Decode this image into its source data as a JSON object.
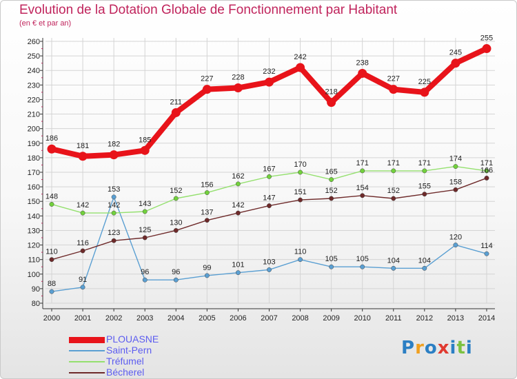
{
  "header": {
    "title": "Evolution de la Dotation Globale de Fonctionnement par Habitant",
    "subtitle": "(en € et par an)"
  },
  "colors": {
    "title": "#c0245c",
    "legend_text": "#5c5cf0",
    "grid": "#d4d4d4"
  },
  "chart_data": {
    "type": "line",
    "title": "Evolution de la Dotation Globale de Fonctionnement par Habitant",
    "subtitle": "(en € et par an)",
    "xlabel": "",
    "ylabel": "",
    "ylim": [
      80,
      260
    ],
    "yticks": [
      80,
      90,
      100,
      110,
      120,
      130,
      140,
      150,
      160,
      170,
      180,
      190,
      200,
      210,
      220,
      230,
      240,
      250,
      260
    ],
    "categories": [
      "2000",
      "2001",
      "2002",
      "2003",
      "2004",
      "2005",
      "2006",
      "2007",
      "2008",
      "2009",
      "2010",
      "2011",
      "2012",
      "2013",
      "2014"
    ],
    "legend_position": "bottom-left",
    "series": [
      {
        "name": "PLOUASNE",
        "color": "#e8131a",
        "marker": "#e8131a",
        "values": [
          186,
          181,
          182,
          185,
          211,
          227,
          228,
          232,
          242,
          218,
          238,
          227,
          225,
          245,
          255
        ]
      },
      {
        "name": "Saint-Pern",
        "color": "#5a9fd2",
        "marker": "#5a9fd2",
        "values": [
          88,
          91,
          153,
          96,
          96,
          99,
          101,
          103,
          110,
          105,
          105,
          104,
          104,
          120,
          114
        ]
      },
      {
        "name": "Tréfumel",
        "color": "#94e06e",
        "marker": "#72d13c",
        "values": [
          148,
          142,
          142,
          143,
          152,
          156,
          162,
          167,
          170,
          165,
          171,
          171,
          171,
          174,
          171
        ]
      },
      {
        "name": "Bécherel",
        "color": "#6e2a2a",
        "marker": "#6e2a2a",
        "values": [
          110,
          116,
          123,
          125,
          130,
          137,
          142,
          147,
          151,
          152,
          154,
          152,
          155,
          158,
          166
        ]
      }
    ]
  },
  "branding": {
    "logo_letters": [
      "P",
      "r",
      "o",
      "x",
      "i",
      "t",
      "i"
    ],
    "logo_colors": [
      "#2b7fc4",
      "#f0a020",
      "#2b7fc4",
      "#e03a30",
      "#2b7fc4",
      "#7cc242",
      "#2b7fc4"
    ]
  }
}
